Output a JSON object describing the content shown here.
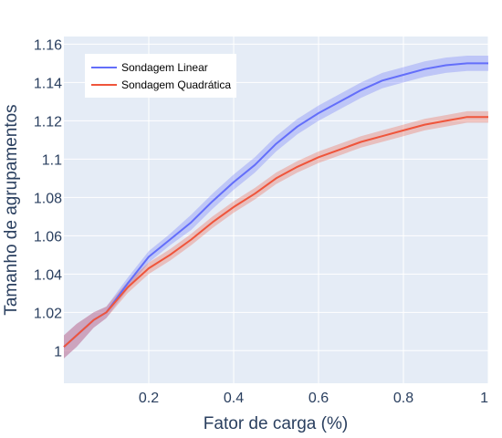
{
  "chart_data": {
    "type": "line",
    "title": "",
    "xlabel": "Fator de carga (%)",
    "ylabel": "Tamanho de agrupamentos",
    "xlim": [
      0.0,
      1.0
    ],
    "ylim": [
      0.983,
      1.164
    ],
    "xticks": [
      0.2,
      0.4,
      0.6,
      0.8,
      1.0
    ],
    "xtick_labels": [
      "0.2",
      "0.4",
      "0.6",
      "0.8",
      "1"
    ],
    "yticks": [
      1.0,
      1.02,
      1.04,
      1.06,
      1.08,
      1.1,
      1.12,
      1.14,
      1.16
    ],
    "ytick_labels": [
      "1",
      "1.02",
      "1.04",
      "1.06",
      "1.08",
      "1.1",
      "1.12",
      "1.14",
      "1.16"
    ],
    "grid": true,
    "background": "#e5ecf6",
    "legend_position": "top-left",
    "series": [
      {
        "name": "Sondagem Linear",
        "color": "#636efa",
        "band_color": "#636efa",
        "x": [
          0.0,
          0.03,
          0.05,
          0.07,
          0.1,
          0.15,
          0.2,
          0.25,
          0.3,
          0.35,
          0.4,
          0.45,
          0.5,
          0.55,
          0.6,
          0.65,
          0.7,
          0.75,
          0.8,
          0.85,
          0.9,
          0.95,
          1.0
        ],
        "y": [
          1.002,
          1.008,
          1.012,
          1.016,
          1.02,
          1.035,
          1.049,
          1.058,
          1.067,
          1.078,
          1.088,
          1.097,
          1.108,
          1.117,
          1.124,
          1.13,
          1.136,
          1.141,
          1.144,
          1.147,
          1.149,
          1.15,
          1.15
        ],
        "band": [
          0.006,
          0.006,
          0.005,
          0.004,
          0.003,
          0.003,
          0.003,
          0.003,
          0.004,
          0.004,
          0.004,
          0.004,
          0.004,
          0.004,
          0.004,
          0.004,
          0.004,
          0.004,
          0.004,
          0.004,
          0.004,
          0.004,
          0.004
        ]
      },
      {
        "name": "Sondagem Quadrática",
        "color": "#ef553b",
        "band_color": "#ef553b",
        "x": [
          0.0,
          0.03,
          0.05,
          0.07,
          0.1,
          0.15,
          0.2,
          0.25,
          0.3,
          0.35,
          0.4,
          0.45,
          0.5,
          0.55,
          0.6,
          0.65,
          0.7,
          0.75,
          0.8,
          0.85,
          0.9,
          0.95,
          1.0
        ],
        "y": [
          1.002,
          1.008,
          1.012,
          1.016,
          1.02,
          1.033,
          1.043,
          1.05,
          1.058,
          1.067,
          1.075,
          1.082,
          1.09,
          1.096,
          1.101,
          1.105,
          1.109,
          1.112,
          1.115,
          1.118,
          1.12,
          1.122,
          1.122
        ],
        "band": [
          0.006,
          0.006,
          0.005,
          0.004,
          0.003,
          0.003,
          0.003,
          0.003,
          0.003,
          0.003,
          0.003,
          0.003,
          0.003,
          0.003,
          0.003,
          0.003,
          0.003,
          0.003,
          0.003,
          0.003,
          0.003,
          0.003,
          0.003
        ]
      }
    ]
  }
}
